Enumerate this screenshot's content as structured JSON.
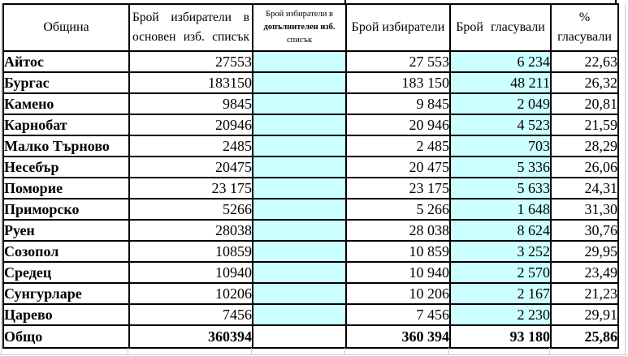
{
  "colors": {
    "highlight_cyan": "#ccffff",
    "border_black": "#000000",
    "gridline_gray": "#cfcfcf"
  },
  "table": {
    "header": {
      "municipality": "Община",
      "main_list_line1": "Брой избиратели в",
      "main_list_line2": "основен изб. списък",
      "add_list_line1": "Брой избиратели в",
      "add_list_line2": "допълнителен изб.",
      "add_list_line3": "списък",
      "voters": "Брой избиратели",
      "voted": "Брой гласували",
      "pct_line1": "%",
      "pct_line2": "гласували"
    },
    "rows": [
      {
        "name": "Айтос",
        "main_list": "27553",
        "additional_list": "",
        "voters": "27 553",
        "voted": "6 234",
        "pct": "22,63"
      },
      {
        "name": "Бургас",
        "main_list": "183150",
        "additional_list": "",
        "voters": "183 150",
        "voted": "48 211",
        "pct": "26,32"
      },
      {
        "name": "Камено",
        "main_list": "9845",
        "additional_list": "",
        "voters": "9 845",
        "voted": "2 049",
        "pct": "20,81"
      },
      {
        "name": "Карнобат",
        "main_list": "20946",
        "additional_list": "",
        "voters": "20 946",
        "voted": "4 523",
        "pct": "21,59"
      },
      {
        "name": "Малко Търново",
        "main_list": "2485",
        "additional_list": "",
        "voters": "2 485",
        "voted": "703",
        "pct": "28,29"
      },
      {
        "name": "Несебър",
        "main_list": "20475",
        "additional_list": "",
        "voters": "20 475",
        "voted": "5 336",
        "pct": "26,06"
      },
      {
        "name": "Поморие",
        "main_list": "23 175",
        "additional_list": "",
        "voters": "23 175",
        "voted": "5 633",
        "pct": "24,31"
      },
      {
        "name": "Приморско",
        "main_list": "5266",
        "additional_list": "",
        "voters": "5 266",
        "voted": "1 648",
        "pct": "31,30"
      },
      {
        "name": "Руен",
        "main_list": "28038",
        "additional_list": "",
        "voters": "28 038",
        "voted": "8 624",
        "pct": "30,76"
      },
      {
        "name": "Созопол",
        "main_list": "10859",
        "additional_list": "",
        "voters": "10 859",
        "voted": "3 252",
        "pct": "29,95"
      },
      {
        "name": "Средец",
        "main_list": "10940",
        "additional_list": "",
        "voters": "10 940",
        "voted": "2 570",
        "pct": "23,49"
      },
      {
        "name": "Сунгурларе",
        "main_list": "10206",
        "additional_list": "",
        "voters": "10 206",
        "voted": "2 167",
        "pct": "21,23"
      },
      {
        "name": "Царево",
        "main_list": "7456",
        "additional_list": "",
        "voters": "7 456",
        "voted": "2 230",
        "pct": "29,91"
      }
    ],
    "total": {
      "name": "Общо",
      "main_list": "360394",
      "additional_list": "",
      "voters": "360 394",
      "voted": "93 180",
      "pct": "25,86"
    }
  }
}
